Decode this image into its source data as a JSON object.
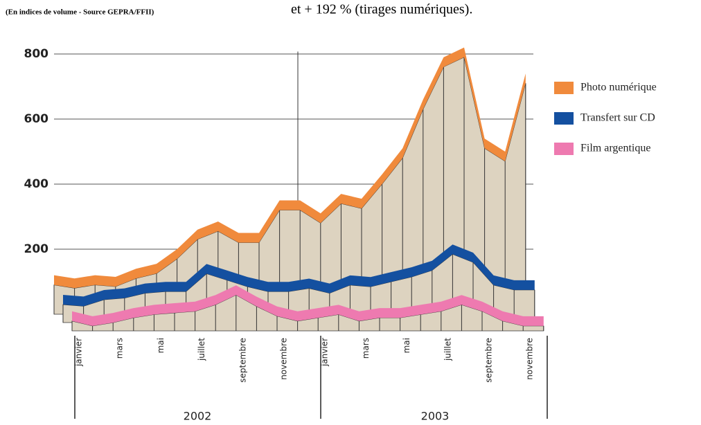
{
  "header": {
    "note": "(En indices de volume - Source GEPRA/FFII)",
    "caption": "et + 192 % (tirages numériques)."
  },
  "chart_data": {
    "type": "line3d",
    "categories": [
      "janvier",
      null,
      "mars",
      null,
      "mai",
      null,
      "juillet",
      null,
      "septembre",
      null,
      "novembre",
      null,
      "janvier",
      null,
      "mars",
      null,
      "mai",
      null,
      "juillet",
      null,
      "septembre",
      null,
      "novembre",
      null
    ],
    "year_labels": [
      "2002",
      "2003"
    ],
    "series": [
      {
        "name": "Photo numérique",
        "color": "#f08a3c",
        "values": [
          120,
          110,
          120,
          115,
          140,
          155,
          200,
          260,
          285,
          250,
          250,
          350,
          350,
          310,
          370,
          355,
          430,
          510,
          660,
          790,
          820,
          540,
          500,
          740
        ]
      },
      {
        "name": "Transfert sur CD",
        "color": "#1450a0",
        "values": [
          85,
          80,
          100,
          105,
          120,
          125,
          125,
          180,
          160,
          140,
          125,
          125,
          135,
          120,
          145,
          140,
          155,
          170,
          190,
          240,
          215,
          145,
          130,
          130
        ]
      },
      {
        "name": "Film argentique",
        "color": "#ee7ab0",
        "values": [
          60,
          45,
          55,
          70,
          80,
          85,
          90,
          110,
          140,
          105,
          75,
          60,
          70,
          80,
          60,
          70,
          70,
          80,
          90,
          110,
          90,
          60,
          45,
          45
        ]
      }
    ],
    "ylim": [
      0,
      850
    ],
    "yticks": [
      200,
      400,
      600,
      800
    ],
    "grid": true
  }
}
